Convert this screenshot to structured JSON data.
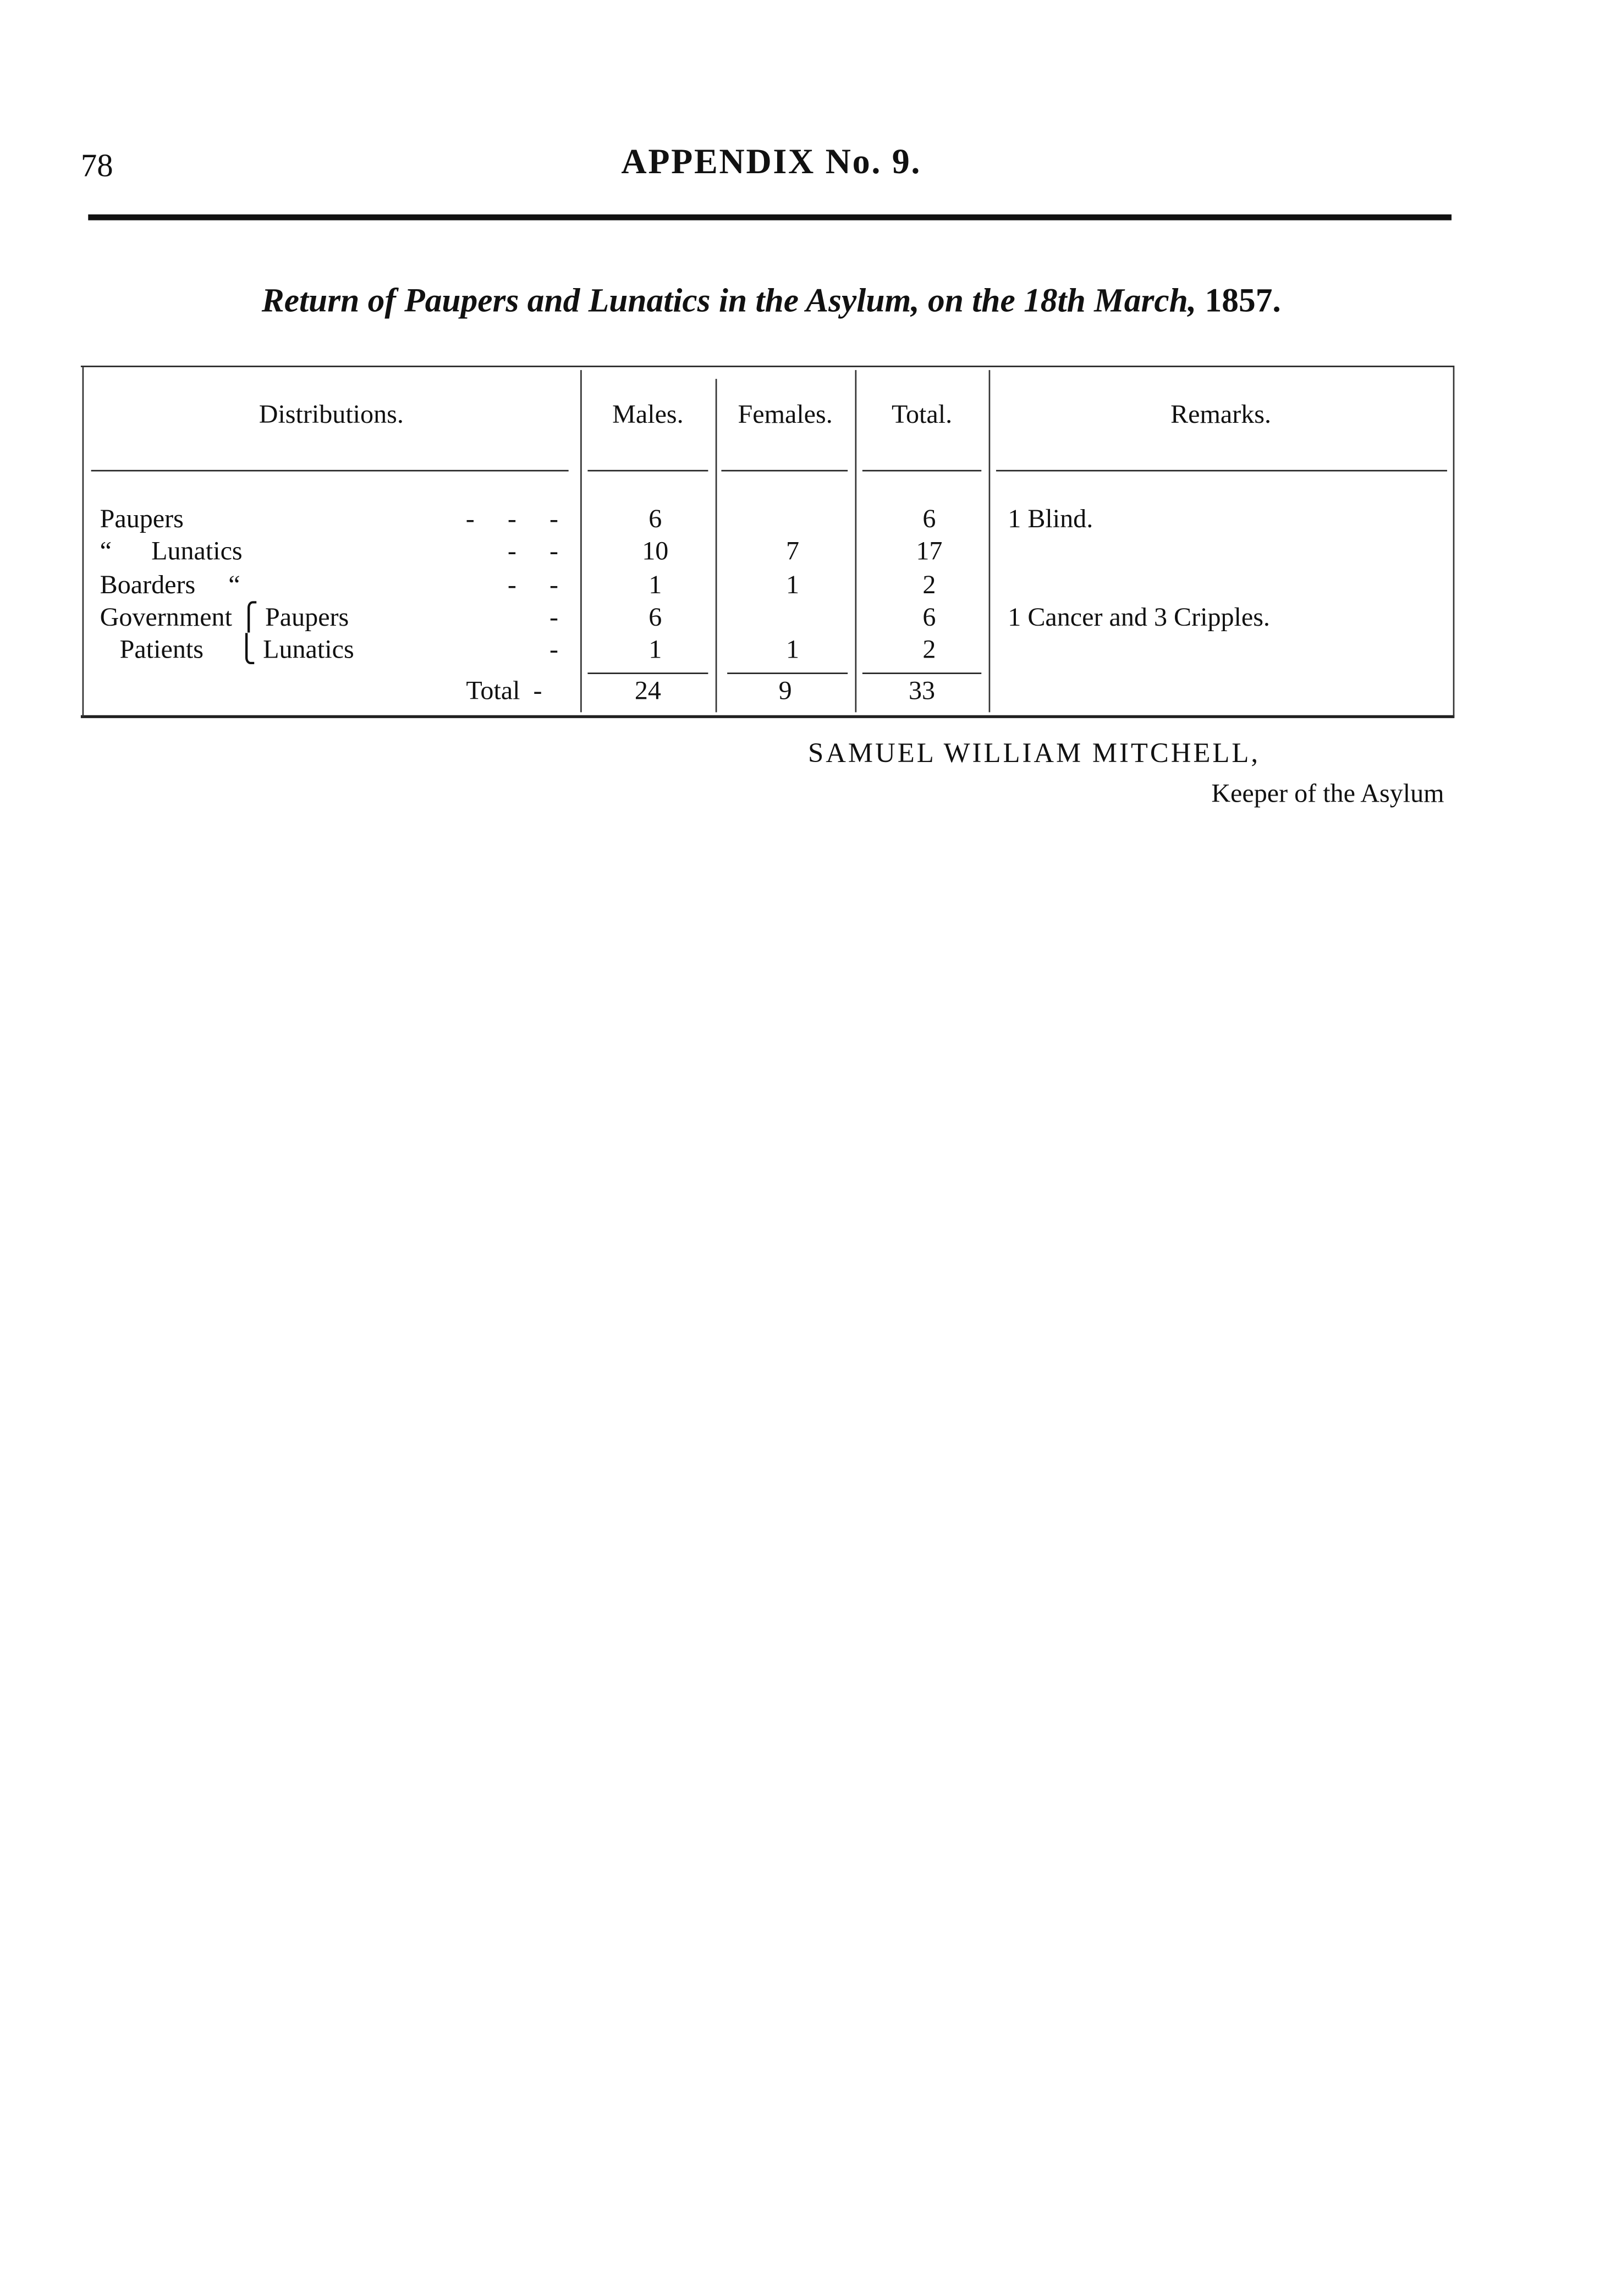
{
  "page_number": "78",
  "header": "APPENDIX No. 9.",
  "subtitle": {
    "text": "Return of Paupers and Lunatics in the Asylum, on the 18th March,",
    "year": "1857."
  },
  "table": {
    "columns": [
      "Distributions.",
      "Males.",
      "Females.",
      "Total.",
      "Remarks."
    ],
    "rows": [
      {
        "label": "Paupers",
        "dashes": "-     -     -",
        "males": "6",
        "females": "",
        "total": "6",
        "remarks": "1 Blind."
      },
      {
        "label": "“      Lunatics",
        "dashes": "-     -",
        "males": "10",
        "females": "7",
        "total": "17",
        "remarks": ""
      },
      {
        "label": "Boarders     “",
        "dashes": "-     -",
        "males": "1",
        "females": "1",
        "total": "2",
        "remarks": ""
      },
      {
        "label": "Government ⎧ Paupers",
        "dashes": "-",
        "males": "6",
        "females": "",
        "total": "6",
        "remarks": "1 Cancer and 3 Cripples."
      },
      {
        "label": "   Patients     ⎩ Lunatics",
        "dashes": "-",
        "males": "1",
        "females": "1",
        "total": "2",
        "remarks": ""
      }
    ],
    "total_row": {
      "label": "Total  -",
      "males": "24",
      "females": "9",
      "total": "33"
    }
  },
  "signature": {
    "name": "SAMUEL WILLIAM MITCHELL,",
    "title": "Keeper of the Asylum"
  }
}
